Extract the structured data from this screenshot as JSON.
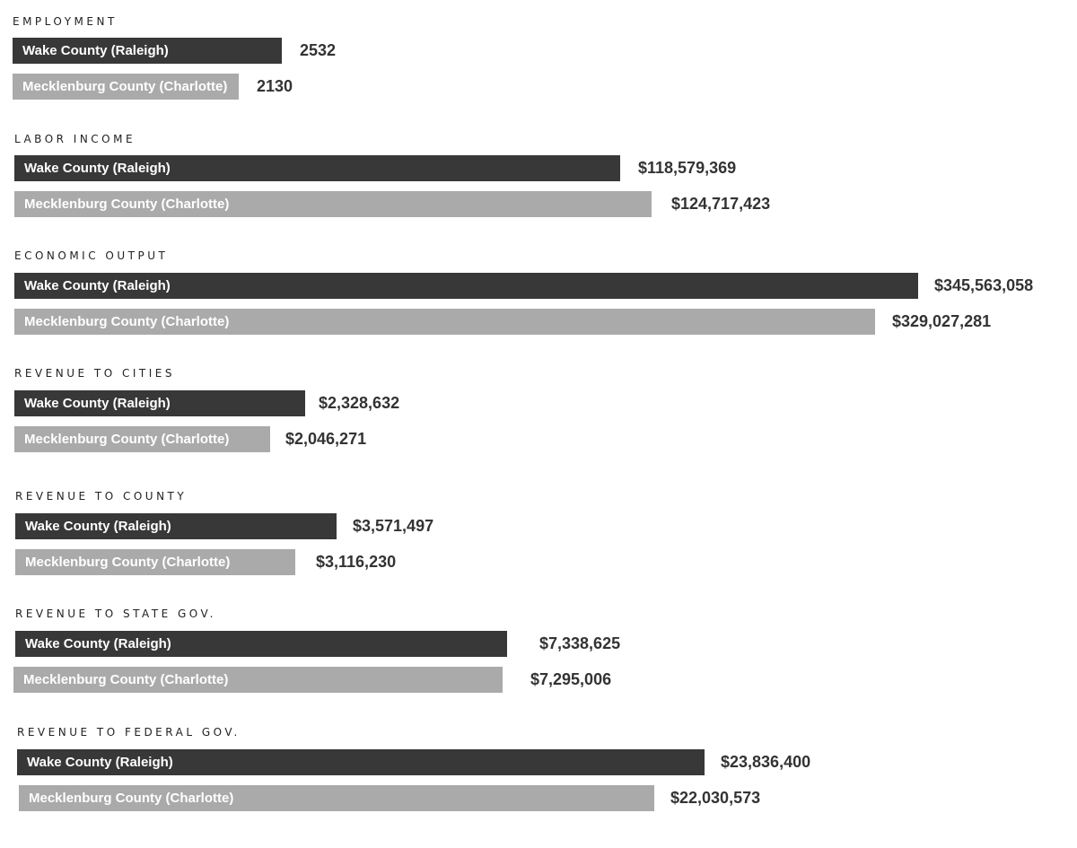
{
  "chart_data": [
    {
      "type": "bar",
      "title": "EMPLOYMENT",
      "series": [
        {
          "name": "Wake County (Raleigh)",
          "value": 2532,
          "label": "2532",
          "color": "#383838"
        },
        {
          "name": "Mecklenburg County (Charlotte)",
          "value": 2130,
          "label": "2130",
          "color": "#aaaaaa"
        }
      ]
    },
    {
      "type": "bar",
      "title": "LABOR INCOME",
      "series": [
        {
          "name": "Wake County (Raleigh)",
          "value": 118579369,
          "label": "$118,579,369",
          "color": "#383838"
        },
        {
          "name": "Mecklenburg County (Charlotte)",
          "value": 124717423,
          "label": "$124,717,423",
          "color": "#aaaaaa"
        }
      ]
    },
    {
      "type": "bar",
      "title": "ECONOMIC OUTPUT",
      "series": [
        {
          "name": "Wake County (Raleigh)",
          "value": 345563058,
          "label": "$345,563,058",
          "color": "#383838"
        },
        {
          "name": "Mecklenburg County (Charlotte)",
          "value": 329027281,
          "label": "$329,027,281",
          "color": "#aaaaaa"
        }
      ]
    },
    {
      "type": "bar",
      "title": "REVENUE TO CITIES",
      "series": [
        {
          "name": "Wake County (Raleigh)",
          "value": 2328632,
          "label": "$2,328,632",
          "color": "#383838"
        },
        {
          "name": "Mecklenburg County (Charlotte)",
          "value": 2046271,
          "label": "$2,046,271",
          "color": "#aaaaaa"
        }
      ]
    },
    {
      "type": "bar",
      "title": "REVENUE TO COUNTY",
      "series": [
        {
          "name": "Wake County (Raleigh)",
          "value": 3571497,
          "label": "$3,571,497",
          "color": "#383838"
        },
        {
          "name": "Mecklenburg County (Charlotte)",
          "value": 3116230,
          "label": "$3,116,230",
          "color": "#aaaaaa"
        }
      ]
    },
    {
      "type": "bar",
      "title": "REVENUE TO STATE GOV.",
      "series": [
        {
          "name": "Wake County (Raleigh)",
          "value": 7338625,
          "label": "$7,338,625",
          "color": "#383838"
        },
        {
          "name": "Mecklenburg County (Charlotte)",
          "value": 7295006,
          "label": "$7,295,006",
          "color": "#aaaaaa"
        }
      ]
    },
    {
      "type": "bar",
      "title": "REVENUE TO FEDERAL GOV.",
      "series": [
        {
          "name": "Wake County (Raleigh)",
          "value": 23836400,
          "label": "$23,836,400",
          "color": "#383838"
        },
        {
          "name": "Mecklenburg County (Charlotte)",
          "value": 22030573,
          "label": "$22,030,573",
          "color": "#aaaaaa"
        }
      ]
    }
  ]
}
